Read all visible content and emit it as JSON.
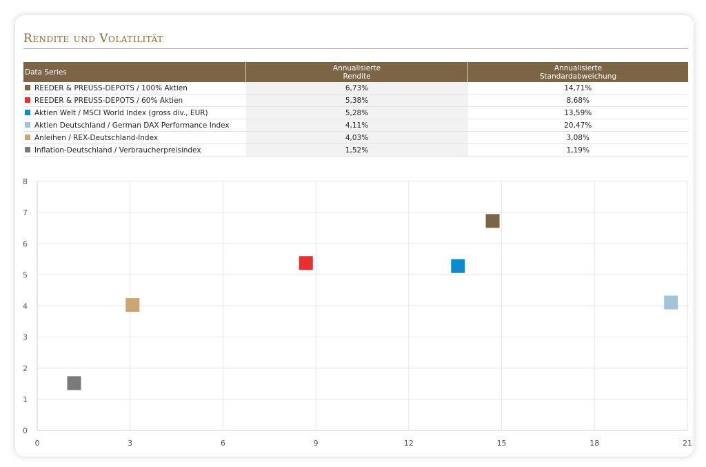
{
  "title": "Rendite und Volatilität",
  "table": {
    "headers": [
      "Data Series",
      "Annualisierte\nRendite",
      "Annualisierte\nStandardabweichung"
    ],
    "rows": [
      {
        "name": "REEDER & PREUSS-DEPOTS / 100% Aktien",
        "rendite": "6,73%",
        "std": "14,71%",
        "color": "#7c6547"
      },
      {
        "name": "REEDER & PREUSS-DEPOTS / 60% Aktien",
        "rendite": "5,38%",
        "std": "8,68%",
        "color": "#e8312e"
      },
      {
        "name": "Aktien Welt / MSCI World Index (gross div., EUR)",
        "rendite": "5,28%",
        "std": "13,59%",
        "color": "#0a8ccd"
      },
      {
        "name": "Aktien Deutschland / German DAX Performance Index",
        "rendite": "4,11%",
        "std": "20,47%",
        "color": "#a3c4d8"
      },
      {
        "name": "Anleihen / REX-Deutschland-Index",
        "rendite": "4,03%",
        "std": "3,08%",
        "color": "#c9a674"
      },
      {
        "name": "Inflation-Deutschland / Verbraucherpreisindex",
        "rendite": "1,52%",
        "std": "1,19%",
        "color": "#7a7a7a"
      }
    ]
  },
  "chart_data": {
    "type": "scatter",
    "xlim": [
      0,
      21
    ],
    "ylim": [
      0,
      8
    ],
    "xticks": [
      0,
      3,
      6,
      9,
      12,
      15,
      18,
      21
    ],
    "yticks": [
      0,
      1,
      2,
      3,
      4,
      5,
      6,
      7,
      8
    ],
    "grid": true,
    "series": [
      {
        "x": 14.71,
        "y": 6.73,
        "color": "#7c6547"
      },
      {
        "x": 8.68,
        "y": 5.38,
        "color": "#e8312e"
      },
      {
        "x": 13.59,
        "y": 5.28,
        "color": "#0a8ccd"
      },
      {
        "x": 20.47,
        "y": 4.11,
        "color": "#a3c4d8"
      },
      {
        "x": 3.08,
        "y": 4.03,
        "color": "#c9a674"
      },
      {
        "x": 1.19,
        "y": 1.52,
        "color": "#7a7a7a"
      }
    ]
  }
}
